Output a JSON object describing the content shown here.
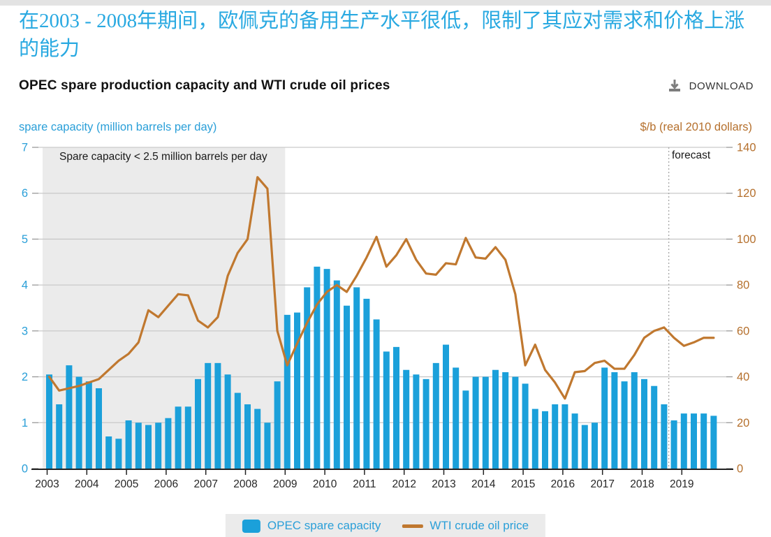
{
  "header": {
    "headline_zh": "在2003 - 2008年期间，欧佩克的备用生产水平很低，限制了其应对需求和价格上涨的能力",
    "title": "OPEC spare production capacity and WTI crude oil prices",
    "download_label": "DOWNLOAD"
  },
  "chart_data": {
    "type": "bar+line",
    "title": "OPEC spare production capacity and WTI crude oil prices",
    "left_axis": {
      "label": "spare capacity (million barrels per day)",
      "range": [
        0,
        7
      ],
      "ticks": [
        0,
        1,
        2,
        3,
        4,
        5,
        6,
        7
      ]
    },
    "right_axis": {
      "label": "$/b (real 2010 dollars)",
      "range": [
        0,
        140
      ],
      "ticks": [
        0,
        20,
        40,
        60,
        80,
        100,
        120,
        140
      ]
    },
    "years": [
      2003,
      2004,
      2005,
      2006,
      2007,
      2008,
      2009,
      2010,
      2011,
      2012,
      2013,
      2014,
      2015,
      2016,
      2017,
      2018,
      2019
    ],
    "frequency": "quarterly (Q1-Q4 per year)",
    "annotation": "Spare capacity < 2.5 million barrels per day",
    "shaded_region": {
      "from": "2003 Q1",
      "to": "2008 Q4"
    },
    "forecast_label": "forecast",
    "forecast_from": "2018 Q4",
    "grid": true,
    "legend_position": "bottom",
    "series": [
      {
        "name": "OPEC spare capacity",
        "type": "bar",
        "axis": "left",
        "color": "#1ba0da",
        "values": [
          2.05,
          1.4,
          2.25,
          2.0,
          1.9,
          1.75,
          0.7,
          0.65,
          1.05,
          1.0,
          0.95,
          1.0,
          1.1,
          1.35,
          1.35,
          1.95,
          2.3,
          2.3,
          2.05,
          1.65,
          1.4,
          1.3,
          1.0,
          1.9,
          3.35,
          3.4,
          3.95,
          4.4,
          4.35,
          4.1,
          3.55,
          3.95,
          3.7,
          3.25,
          2.55,
          2.65,
          2.15,
          2.05,
          1.95,
          2.3,
          2.7,
          2.2,
          1.7,
          2.0,
          2.0,
          2.15,
          2.1,
          2.0,
          1.85,
          1.3,
          1.25,
          1.4,
          1.4,
          1.2,
          0.95,
          1.0,
          2.2,
          2.1,
          1.9,
          2.1,
          1.95,
          1.8,
          1.4,
          1.05,
          1.2,
          1.2,
          1.2,
          1.15
        ]
      },
      {
        "name": "WTI crude oil price",
        "type": "line",
        "axis": "right",
        "color": "#c0782f",
        "values": [
          40,
          34,
          35,
          36,
          37.5,
          39,
          43,
          47,
          50,
          55,
          69,
          66,
          71,
          76,
          75.5,
          64.5,
          61.5,
          66,
          84,
          94,
          100,
          127,
          122,
          60,
          45,
          54.5,
          63.5,
          71.5,
          77,
          80,
          77,
          84,
          92,
          101,
          88,
          93,
          100,
          91,
          85,
          84.5,
          89.5,
          89,
          100.5,
          92,
          91.5,
          96.5,
          91,
          76,
          45,
          54,
          43,
          37.5,
          30.5,
          42,
          42.5,
          46,
          47,
          43.5,
          43.5,
          49.5,
          57,
          60,
          61.5,
          57,
          53.5,
          55,
          57,
          57
        ]
      }
    ],
    "colors": {
      "shade": "#ebebeb",
      "grid": "#c9c9c9",
      "axis_line": "#222222",
      "tick": "#999999",
      "left_tick_text": "#2a9fd8",
      "right_tick_text": "#b5702d",
      "year_text": "#262626",
      "forecast_line": "#aaaaaa"
    }
  },
  "legend": {
    "items": [
      "OPEC spare capacity",
      "WTI crude oil price"
    ]
  }
}
